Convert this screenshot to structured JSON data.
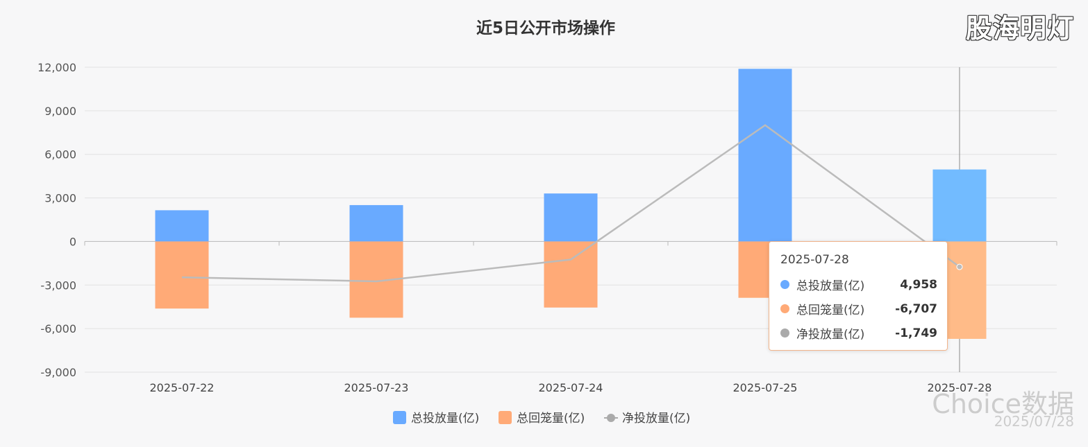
{
  "title": "近5日公开市场操作",
  "brand_logo": "股海明灯",
  "watermark": {
    "brand": "Choice数据",
    "date": "2025/07/28"
  },
  "colors": {
    "invest": "#69aaff",
    "invest_active": "#72bbff",
    "withdraw": "#ffaa77",
    "withdraw_active": "#ffbb88",
    "net": "#bbbbbb",
    "net_legend": "#aaaaaa"
  },
  "chart_data": {
    "type": "bar",
    "title": "近5日公开市场操作",
    "categories": [
      "2025-07-22",
      "2025-07-23",
      "2025-07-24",
      "2025-07-25",
      "2025-07-28"
    ],
    "series": [
      {
        "name": "总投放量(亿)",
        "type": "bar",
        "values": [
          2150,
          2505,
          3305,
          11890,
          4958
        ]
      },
      {
        "name": "总回笼量(亿)",
        "type": "bar",
        "values": [
          -4620,
          -5250,
          -4550,
          -3880,
          -6707
        ]
      },
      {
        "name": "净投放量(亿)",
        "type": "line",
        "values": [
          -2470,
          -2745,
          -1245,
          8010,
          -1749
        ]
      }
    ],
    "yticks": [
      12000,
      9000,
      6000,
      3000,
      0,
      -3000,
      -6000,
      -9000
    ],
    "ytick_labels": [
      "12,000",
      "9,000",
      "6,000",
      "3,000",
      "0",
      "-3,000",
      "-6,000",
      "-9,000"
    ],
    "ylim": [
      -9000,
      12000
    ],
    "grid": true,
    "legend": "bottom-center",
    "highlighted_category": "2025-07-28"
  },
  "tooltip": {
    "title": "2025-07-28",
    "rows": [
      {
        "name": "总投放量(亿)",
        "value": "4,958",
        "color": "#69aaff"
      },
      {
        "name": "总回笼量(亿)",
        "value": "-6,707",
        "color": "#ffaa77"
      },
      {
        "name": "净投放量(亿)",
        "value": "-1,749",
        "color": "#aaaaaa"
      }
    ]
  }
}
